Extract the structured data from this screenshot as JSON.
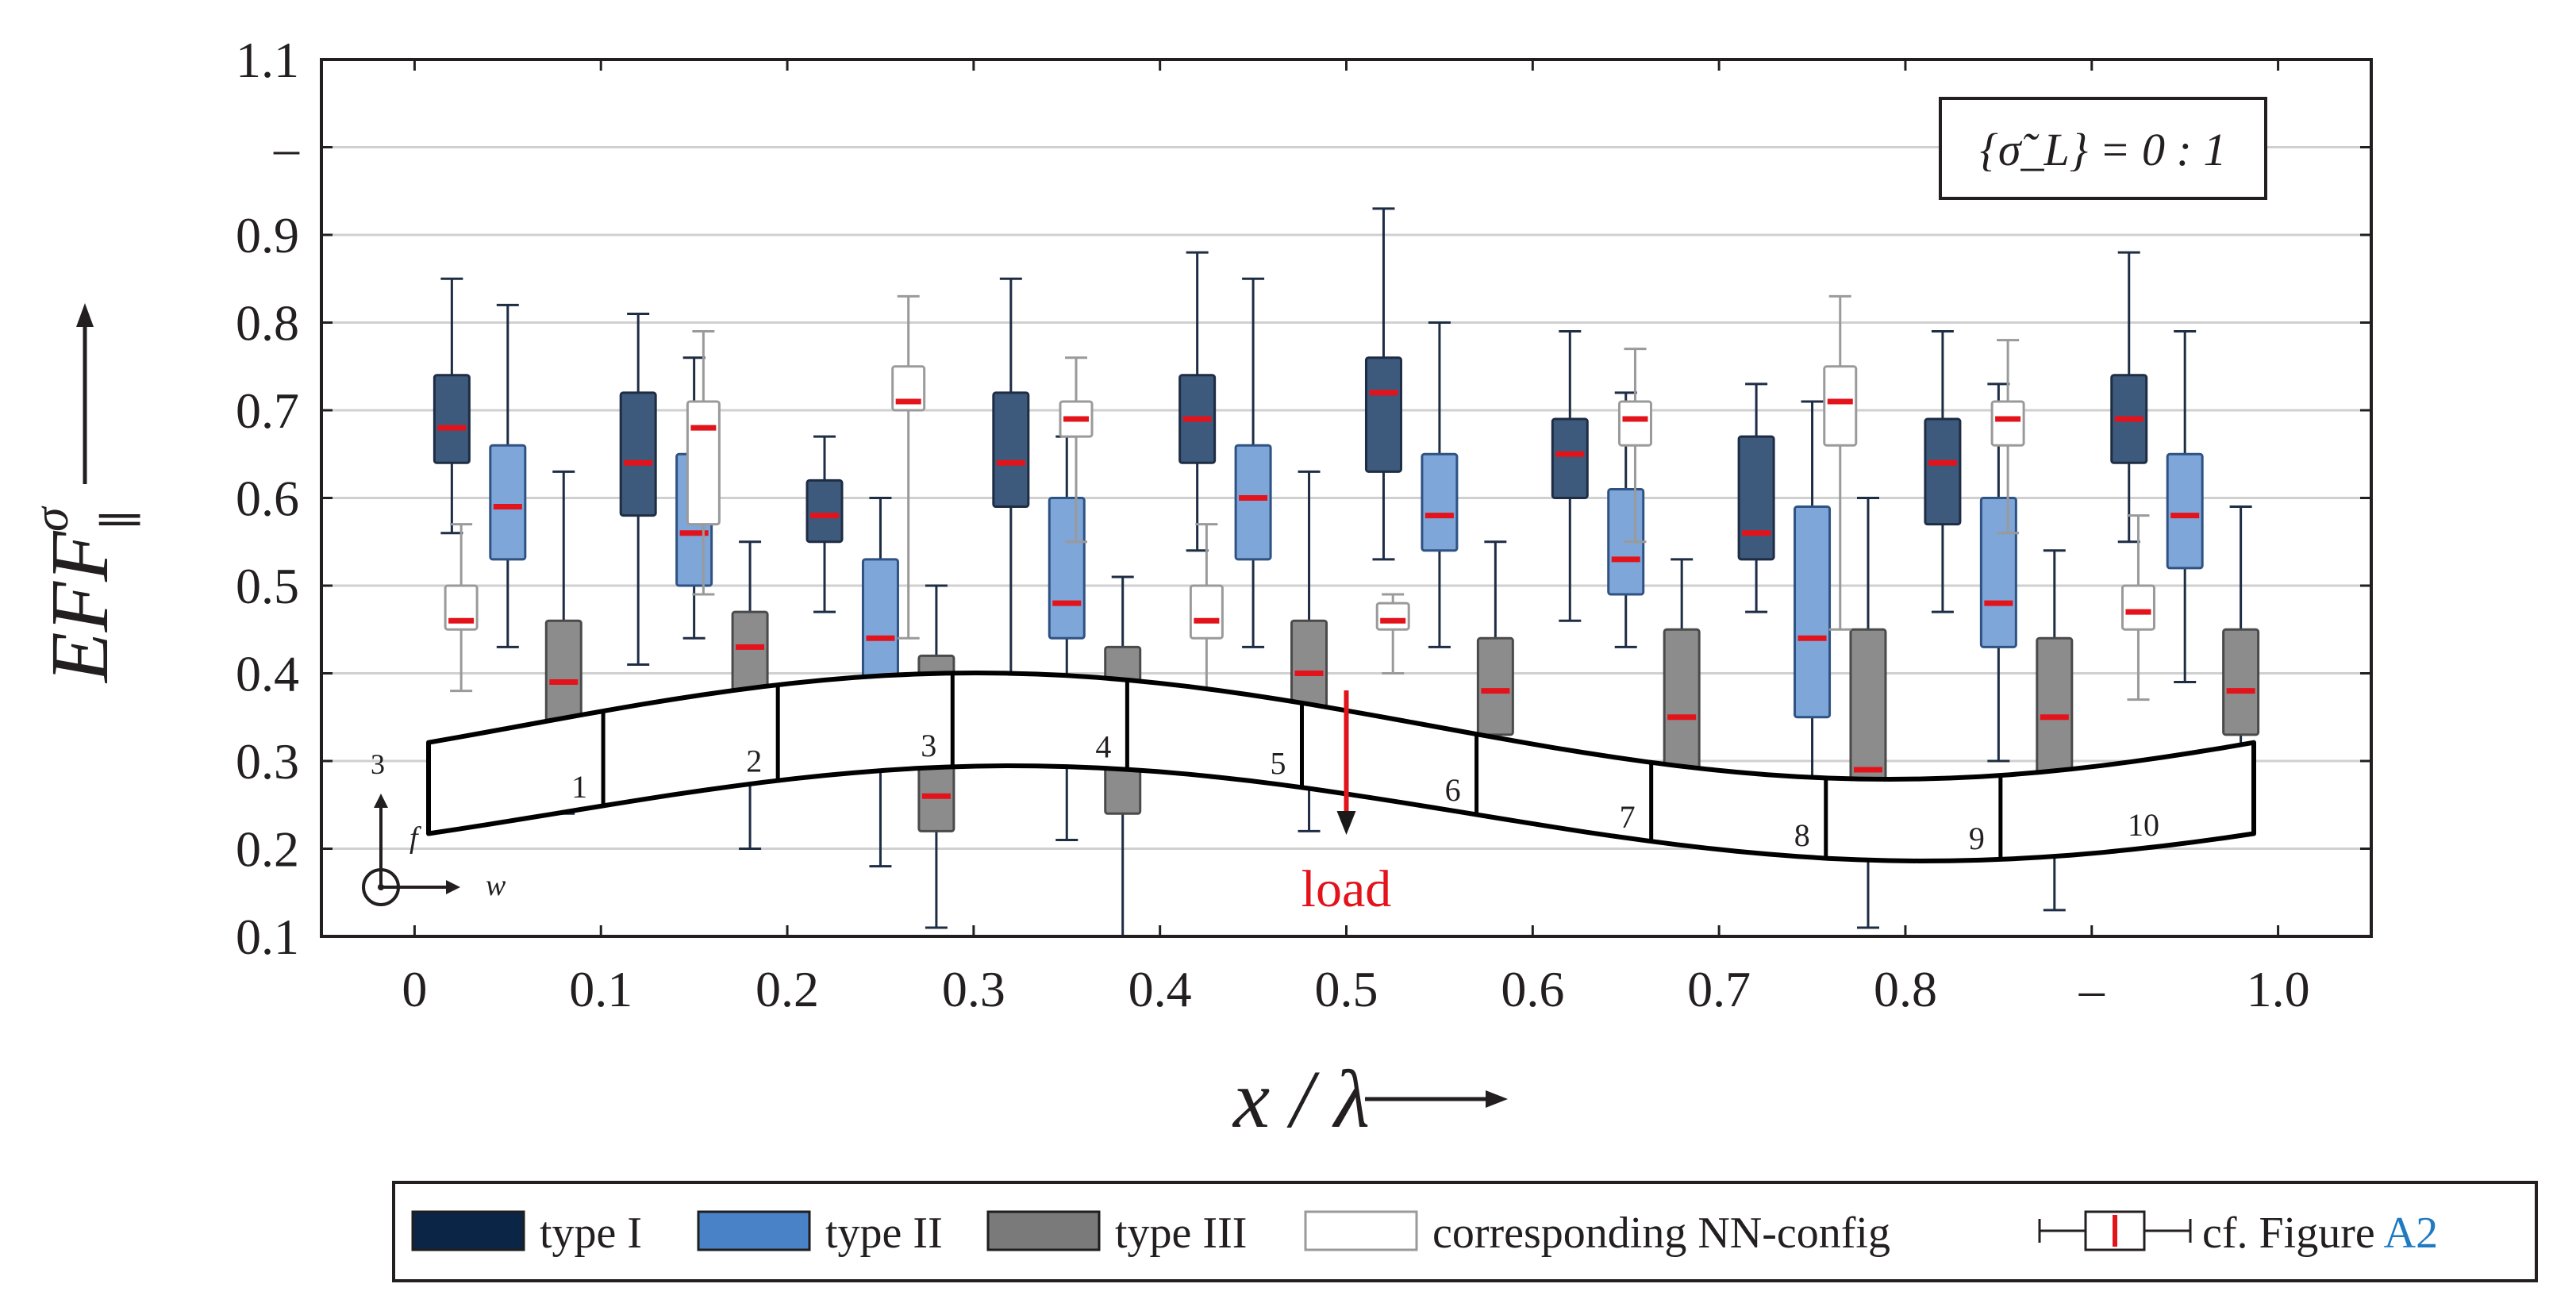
{
  "chart_data": {
    "type": "box",
    "xlabel": "x / λ",
    "ylabel": "EFF",
    "ylabel_super": "σ",
    "ylabel_sub": "∥",
    "ylim": [
      0.1,
      1.1
    ],
    "xlim": [
      -0.05,
      1.05
    ],
    "x_tick_labels": [
      {
        "v": 0.0,
        "t": "0"
      },
      {
        "v": 0.1,
        "t": "0.1"
      },
      {
        "v": 0.2,
        "t": "0.2"
      },
      {
        "v": 0.3,
        "t": "0.3"
      },
      {
        "v": 0.4,
        "t": "0.4"
      },
      {
        "v": 0.5,
        "t": "0.5"
      },
      {
        "v": 0.6,
        "t": "0.6"
      },
      {
        "v": 0.7,
        "t": "0.7"
      },
      {
        "v": 0.8,
        "t": "0.8"
      },
      {
        "v": 0.9,
        "t": "–"
      },
      {
        "v": 1.0,
        "t": "1.0"
      }
    ],
    "y_tick_labels": [
      {
        "v": 0.1,
        "t": "0.1"
      },
      {
        "v": 0.2,
        "t": "0.2"
      },
      {
        "v": 0.3,
        "t": "0.3"
      },
      {
        "v": 0.4,
        "t": "0.4"
      },
      {
        "v": 0.5,
        "t": "0.5"
      },
      {
        "v": 0.6,
        "t": "0.6"
      },
      {
        "v": 0.7,
        "t": "0.7"
      },
      {
        "v": 0.8,
        "t": "0.8"
      },
      {
        "v": 0.9,
        "t": "0.9"
      },
      {
        "v": 1.0,
        "t": "–"
      },
      {
        "v": 1.1,
        "t": "1.1"
      }
    ],
    "annotation": "{σ̃_L} = 0 : 1",
    "load_label": "load",
    "load_x": 0.5,
    "axis_labels_small": {
      "up": "3",
      "diag": "f",
      "right": "w"
    },
    "segments": [
      "1",
      "2",
      "3",
      "4",
      "5",
      "6",
      "7",
      "8",
      "9",
      "10"
    ],
    "colors": {
      "type1": "#3d5a7d",
      "type1_edge": "#1e2c44",
      "type2": "#7ea6d8",
      "type2_edge": "#2f5282",
      "type3": "#8c8c8c",
      "type3_edge": "#4a4a4a",
      "nn": "#ffffff",
      "nn_edge": "#9a9a9a",
      "median": "#e3131b",
      "legend_type1": "#0b2546",
      "legend_type2": "#4a82c8",
      "legend_type3": "#7a7a7a",
      "accent_link": "#1f7ac2"
    },
    "series": [
      {
        "name": "type I",
        "boxes": [
          {
            "x": 0.02,
            "min": 0.56,
            "q1": 0.64,
            "med": 0.68,
            "q3": 0.74,
            "max": 0.85
          },
          {
            "x": 0.12,
            "min": 0.41,
            "q1": 0.58,
            "med": 0.64,
            "q3": 0.72,
            "max": 0.81
          },
          {
            "x": 0.22,
            "min": 0.47,
            "q1": 0.55,
            "med": 0.58,
            "q3": 0.62,
            "max": 0.67
          },
          {
            "x": 0.32,
            "min": 0.4,
            "q1": 0.59,
            "med": 0.64,
            "q3": 0.72,
            "max": 0.85
          },
          {
            "x": 0.42,
            "min": 0.54,
            "q1": 0.64,
            "med": 0.69,
            "q3": 0.74,
            "max": 0.88
          },
          {
            "x": 0.52,
            "min": 0.53,
            "q1": 0.63,
            "med": 0.72,
            "q3": 0.76,
            "max": 0.93
          },
          {
            "x": 0.62,
            "min": 0.46,
            "q1": 0.6,
            "med": 0.65,
            "q3": 0.69,
            "max": 0.79
          },
          {
            "x": 0.72,
            "min": 0.47,
            "q1": 0.53,
            "med": 0.56,
            "q3": 0.67,
            "max": 0.73
          },
          {
            "x": 0.82,
            "min": 0.47,
            "q1": 0.57,
            "med": 0.64,
            "q3": 0.69,
            "max": 0.79
          },
          {
            "x": 0.92,
            "min": 0.55,
            "q1": 0.64,
            "med": 0.69,
            "q3": 0.74,
            "max": 0.88
          }
        ]
      },
      {
        "name": "type II",
        "boxes": [
          {
            "x": 0.05,
            "min": 0.43,
            "q1": 0.53,
            "med": 0.59,
            "q3": 0.66,
            "max": 0.82
          },
          {
            "x": 0.15,
            "min": 0.44,
            "q1": 0.5,
            "med": 0.56,
            "q3": 0.65,
            "max": 0.76
          },
          {
            "x": 0.25,
            "min": 0.18,
            "q1": 0.3,
            "med": 0.44,
            "q3": 0.53,
            "max": 0.6
          },
          {
            "x": 0.35,
            "min": 0.21,
            "q1": 0.44,
            "med": 0.48,
            "q3": 0.6,
            "max": 0.67
          },
          {
            "x": 0.45,
            "min": 0.43,
            "q1": 0.53,
            "med": 0.6,
            "q3": 0.66,
            "max": 0.85
          },
          {
            "x": 0.55,
            "min": 0.43,
            "q1": 0.54,
            "med": 0.58,
            "q3": 0.65,
            "max": 0.8
          },
          {
            "x": 0.65,
            "min": 0.43,
            "q1": 0.49,
            "med": 0.53,
            "q3": 0.61,
            "max": 0.72
          },
          {
            "x": 0.75,
            "min": 0.26,
            "q1": 0.35,
            "med": 0.44,
            "q3": 0.59,
            "max": 0.71
          },
          {
            "x": 0.85,
            "min": 0.3,
            "q1": 0.43,
            "med": 0.48,
            "q3": 0.6,
            "max": 0.73
          },
          {
            "x": 0.95,
            "min": 0.39,
            "q1": 0.52,
            "med": 0.58,
            "q3": 0.65,
            "max": 0.79
          }
        ]
      },
      {
        "name": "type III",
        "boxes": [
          {
            "x": 0.08,
            "min": 0.24,
            "q1": 0.32,
            "med": 0.39,
            "q3": 0.46,
            "max": 0.63
          },
          {
            "x": 0.18,
            "min": 0.2,
            "q1": 0.3,
            "med": 0.43,
            "q3": 0.47,
            "max": 0.55
          },
          {
            "x": 0.28,
            "min": 0.11,
            "q1": 0.22,
            "med": 0.26,
            "q3": 0.42,
            "max": 0.5
          },
          {
            "x": 0.38,
            "min": 0.1,
            "q1": 0.24,
            "med": 0.36,
            "q3": 0.43,
            "max": 0.51
          },
          {
            "x": 0.48,
            "min": 0.22,
            "q1": 0.33,
            "med": 0.4,
            "q3": 0.46,
            "max": 0.63
          },
          {
            "x": 0.58,
            "min": 0.3,
            "q1": 0.33,
            "med": 0.38,
            "q3": 0.44,
            "max": 0.55
          },
          {
            "x": 0.68,
            "min": 0.22,
            "q1": 0.28,
            "med": 0.35,
            "q3": 0.45,
            "max": 0.53
          },
          {
            "x": 0.78,
            "min": 0.11,
            "q1": 0.22,
            "med": 0.29,
            "q3": 0.45,
            "max": 0.6
          },
          {
            "x": 0.88,
            "min": 0.13,
            "q1": 0.23,
            "med": 0.35,
            "q3": 0.44,
            "max": 0.54
          },
          {
            "x": 0.98,
            "min": 0.22,
            "q1": 0.33,
            "med": 0.38,
            "q3": 0.45,
            "max": 0.59
          }
        ]
      },
      {
        "name": "corresponding NN-config",
        "boxes": [
          {
            "x": 0.025,
            "min": 0.38,
            "q1": 0.45,
            "med": 0.46,
            "q3": 0.5,
            "max": 0.57
          },
          {
            "x": 0.155,
            "min": 0.49,
            "q1": 0.57,
            "med": 0.68,
            "q3": 0.71,
            "max": 0.79
          },
          {
            "x": 0.265,
            "min": 0.44,
            "q1": 0.7,
            "med": 0.71,
            "q3": 0.75,
            "max": 0.83
          },
          {
            "x": 0.355,
            "min": 0.55,
            "q1": 0.67,
            "med": 0.69,
            "q3": 0.71,
            "max": 0.76
          },
          {
            "x": 0.425,
            "min": 0.37,
            "q1": 0.44,
            "med": 0.46,
            "q3": 0.5,
            "max": 0.57
          },
          {
            "x": 0.525,
            "min": 0.4,
            "q1": 0.45,
            "med": 0.46,
            "q3": 0.48,
            "max": 0.49
          },
          {
            "x": 0.655,
            "min": 0.55,
            "q1": 0.66,
            "med": 0.69,
            "q3": 0.71,
            "max": 0.77
          },
          {
            "x": 0.765,
            "min": 0.45,
            "q1": 0.66,
            "med": 0.71,
            "q3": 0.75,
            "max": 0.83
          },
          {
            "x": 0.855,
            "min": 0.56,
            "q1": 0.66,
            "med": 0.69,
            "q3": 0.71,
            "max": 0.78
          },
          {
            "x": 0.925,
            "min": 0.37,
            "q1": 0.45,
            "med": 0.47,
            "q3": 0.5,
            "max": 0.58
          }
        ]
      }
    ],
    "legend": {
      "items": [
        "type I",
        "type II",
        "type III",
        "corresponding NN-config"
      ],
      "ref_prefix": "cf. Figure",
      "ref_link": "A2"
    }
  }
}
